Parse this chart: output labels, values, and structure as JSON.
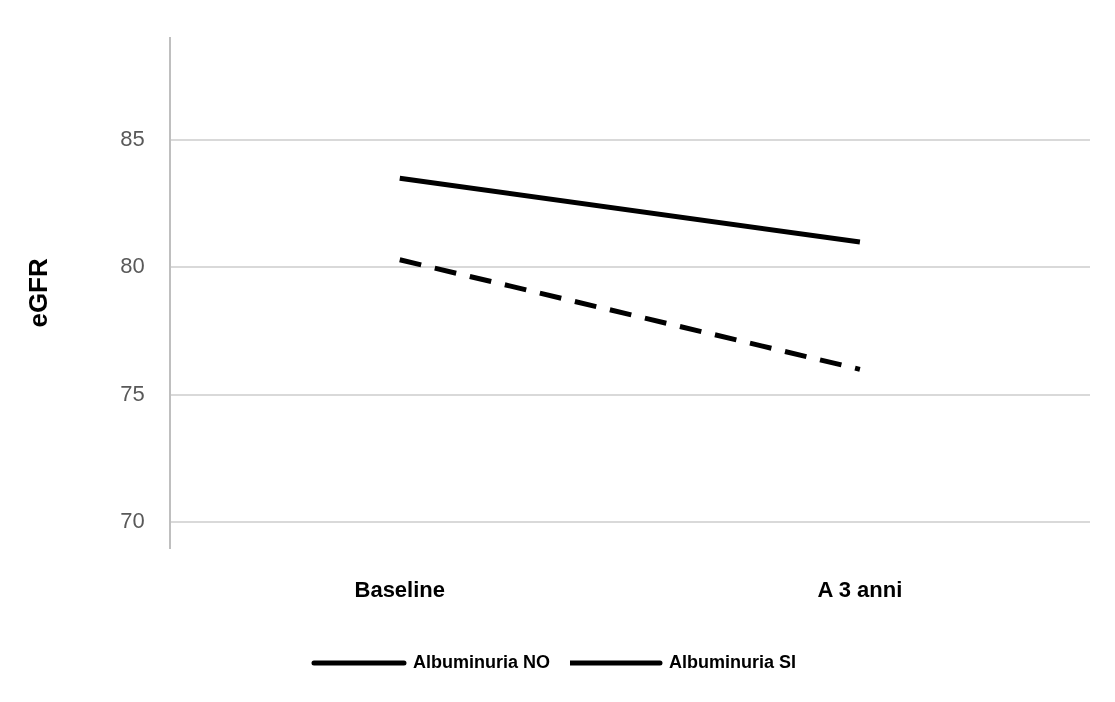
{
  "chart_data": {
    "type": "line",
    "ylabel": "eGFR",
    "categories": [
      "Baseline",
      "A 3 anni"
    ],
    "series": [
      {
        "name": "Albuminuria NO",
        "color": "#000000",
        "line_style": "solid",
        "values": [
          83.5,
          81.0
        ]
      },
      {
        "name": "Albuminuria SI",
        "color": "#000000",
        "line_style": "dashed",
        "values": [
          80.3,
          76.0
        ]
      }
    ],
    "ylim": [
      69,
      89
    ],
    "yticks": [
      70,
      75,
      80,
      85
    ],
    "grid": "y",
    "legend": "bottom",
    "marker": "none"
  }
}
